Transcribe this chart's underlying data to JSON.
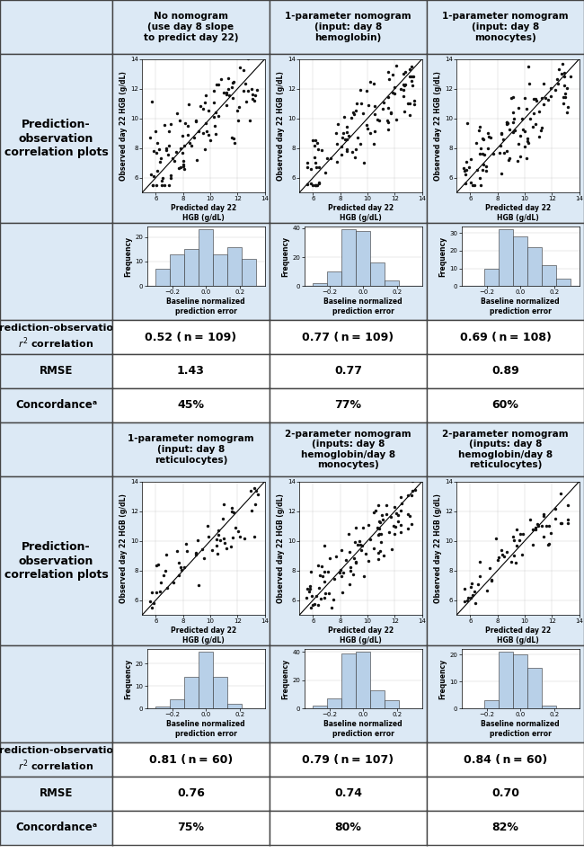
{
  "col_headers_row1": [
    "No nomogram\n(use day 8 slope\nto predict day 22)",
    "1-parameter nomogram\n(input: day 8\nhemoglobin)",
    "1-parameter nomogram\n(input: day 8\nmonocytes)"
  ],
  "col_headers_row2": [
    "1-parameter nomogram\n(input: day 8\nreticulocytes)",
    "2-parameter nomogram\n(inputs: day 8\nhemoglobin/day 8\nmonocytes)",
    "2-parameter nomogram\n(inputs: day 8\nhemoglobin/day 8\nreticulocytes)"
  ],
  "row_label_scatter": "Prediction-\nobservation\ncorrelation plots",
  "r2_values_row1": [
    "0.52 ( n = 109)",
    "0.77 ( n = 109)",
    "0.69 ( n = 108)"
  ],
  "rmse_values_row1": [
    "1.43",
    "0.77",
    "0.89"
  ],
  "concordance_values_row1": [
    "45%",
    "77%",
    "60%"
  ],
  "r2_values_row2": [
    "0.81 ( n = 60)",
    "0.79 ( n = 107)",
    "0.84 ( n = 60)"
  ],
  "rmse_values_row2": [
    "0.76",
    "0.74",
    "0.70"
  ],
  "concordance_values_row2": [
    "75%",
    "80%",
    "82%"
  ],
  "header_bg": "#dce9f5",
  "row_label_bg": "#dce9f5",
  "data_bg": "#ffffff",
  "scatter_bg": "#dce9f5",
  "border_color": "#444444",
  "scatter_dot_color": "#111111",
  "hist_bar_color": "#b8d0e8",
  "hist_line_color": "#333333"
}
